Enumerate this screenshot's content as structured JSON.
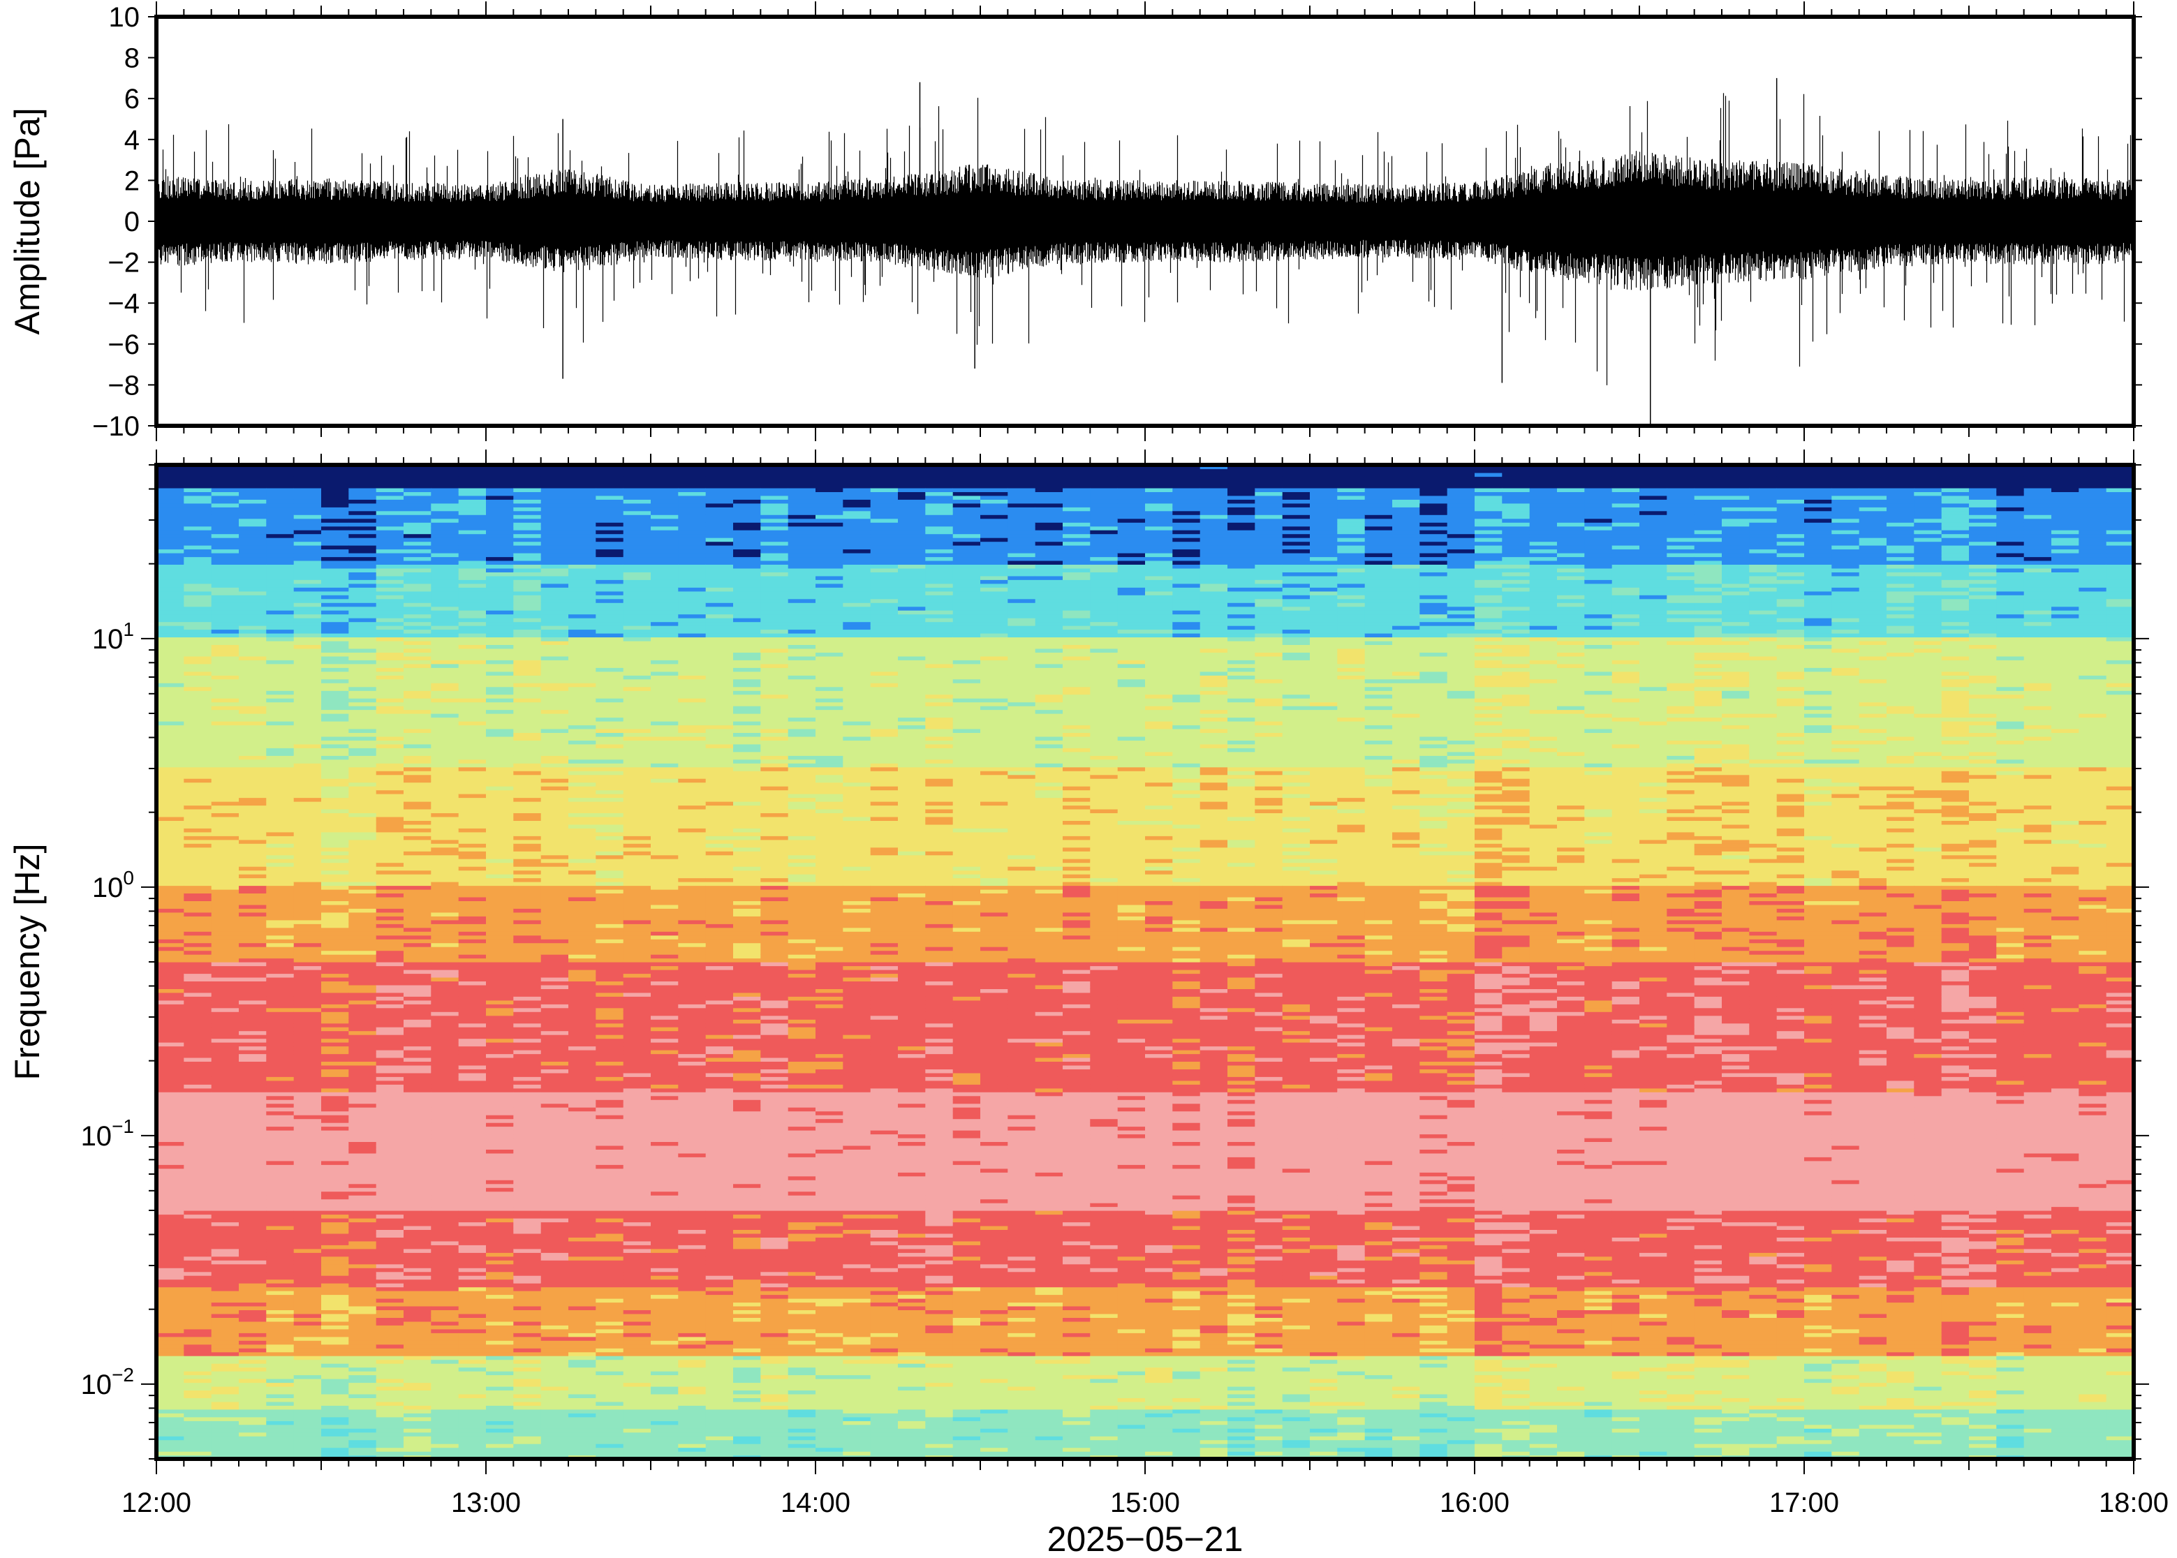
{
  "chart_data": [
    {
      "type": "line",
      "title": "",
      "ylabel": "Amplitude [Pa]",
      "ylim": [
        -10,
        10
      ],
      "y_ticks": [
        "10",
        "8",
        "6",
        "4",
        "2",
        "0",
        "−2",
        "−4",
        "−6",
        "−8",
        "−10"
      ],
      "y_tick_values": [
        10,
        8,
        6,
        4,
        2,
        0,
        -2,
        -4,
        -6,
        -8,
        -10
      ],
      "xlim": [
        "12:00",
        "18:00"
      ],
      "grid": false,
      "series": [
        {
          "color": "#000000",
          "envelope_x": [
            "12:00",
            "12:15",
            "12:30",
            "12:45",
            "13:00",
            "13:15",
            "13:30",
            "13:45",
            "14:00",
            "14:15",
            "14:30",
            "14:45",
            "15:00",
            "15:15",
            "15:30",
            "15:45",
            "16:00",
            "16:15",
            "16:30",
            "16:45",
            "17:00",
            "17:15",
            "17:30",
            "17:45",
            "18:00"
          ],
          "envelope_peak": [
            5.5,
            4.8,
            5.0,
            4.5,
            4.5,
            5.0,
            4.2,
            4.5,
            4.6,
            5.2,
            6.8,
            5.0,
            4.8,
            4.5,
            4.5,
            4.2,
            4.5,
            6.0,
            7.0,
            6.5,
            6.8,
            5.5,
            5.0,
            5.2,
            5.0
          ],
          "envelope_min": [
            -5.5,
            -5.0,
            -5.4,
            -4.8,
            -4.6,
            -7.7,
            -4.5,
            -5.0,
            -4.8,
            -5.6,
            -7.2,
            -5.2,
            -5.0,
            -5.5,
            -4.8,
            -4.5,
            -5.0,
            -7.8,
            -10.0,
            -8.3,
            -7.2,
            -5.5,
            -5.2,
            -5.5,
            -5.0
          ],
          "notable_extremes": [
            {
              "x": "13:14",
              "y": 5.0
            },
            {
              "x": "13:14",
              "y": -7.7
            },
            {
              "x": "14:19",
              "y": 6.8
            },
            {
              "x": "14:29",
              "y": -7.2
            },
            {
              "x": "16:05",
              "y": -7.9
            },
            {
              "x": "16:32",
              "y": -10.0
            },
            {
              "x": "16:55",
              "y": 7.0
            }
          ]
        }
      ]
    },
    {
      "type": "heatmap",
      "title": "",
      "ylabel": "Frequency [Hz]",
      "xlabel": "2025−05−21",
      "y_scale": "log",
      "ylim": [
        0.005,
        50
      ],
      "y_ticks": [
        {
          "base": "10",
          "exp": "1",
          "value": 10
        },
        {
          "base": "10",
          "exp": "0",
          "value": 1
        },
        {
          "base": "10",
          "exp": "−1",
          "value": 0.1
        },
        {
          "base": "10",
          "exp": "−2",
          "value": 0.01
        }
      ],
      "x_ticks": [
        "12:00",
        "13:00",
        "14:00",
        "15:00",
        "16:00",
        "17:00",
        "18:00"
      ],
      "xlim": [
        "12:00",
        "18:00"
      ],
      "colormap": "rainbow (low power blue → cyan → green → yellow → orange → red → light pink at high power)",
      "colors": {
        "navy": "#0a1a6e",
        "blue": "#2b8cf0",
        "cyan": "#5fdde0",
        "teal_green": "#8fe6c0",
        "green_yellow": "#d2ef8a",
        "yellow": "#f2e36c",
        "orange": "#f5a346",
        "red": "#ef5a5a",
        "pink": "#f5a6a6"
      },
      "frequency_bands": [
        {
          "f_low": 40,
          "f_high": 50,
          "color": "navy"
        },
        {
          "f_low": 20,
          "f_high": 40,
          "color": "blue"
        },
        {
          "f_low": 10,
          "f_high": 20,
          "color": "cyan"
        },
        {
          "f_low": 3,
          "f_high": 10,
          "color": "green_yellow"
        },
        {
          "f_low": 1,
          "f_high": 3,
          "color": "yellow"
        },
        {
          "f_low": 0.5,
          "f_high": 1,
          "color": "orange"
        },
        {
          "f_low": 0.15,
          "f_high": 0.5,
          "color": "red"
        },
        {
          "f_low": 0.05,
          "f_high": 0.15,
          "color": "pink"
        },
        {
          "f_low": 0.025,
          "f_high": 0.05,
          "color": "red"
        },
        {
          "f_low": 0.013,
          "f_high": 0.025,
          "color": "orange"
        },
        {
          "f_low": 0.008,
          "f_high": 0.013,
          "color": "green_yellow"
        },
        {
          "f_low": 0.005,
          "f_high": 0.008,
          "color": "teal_green"
        }
      ],
      "grid": false
    }
  ]
}
